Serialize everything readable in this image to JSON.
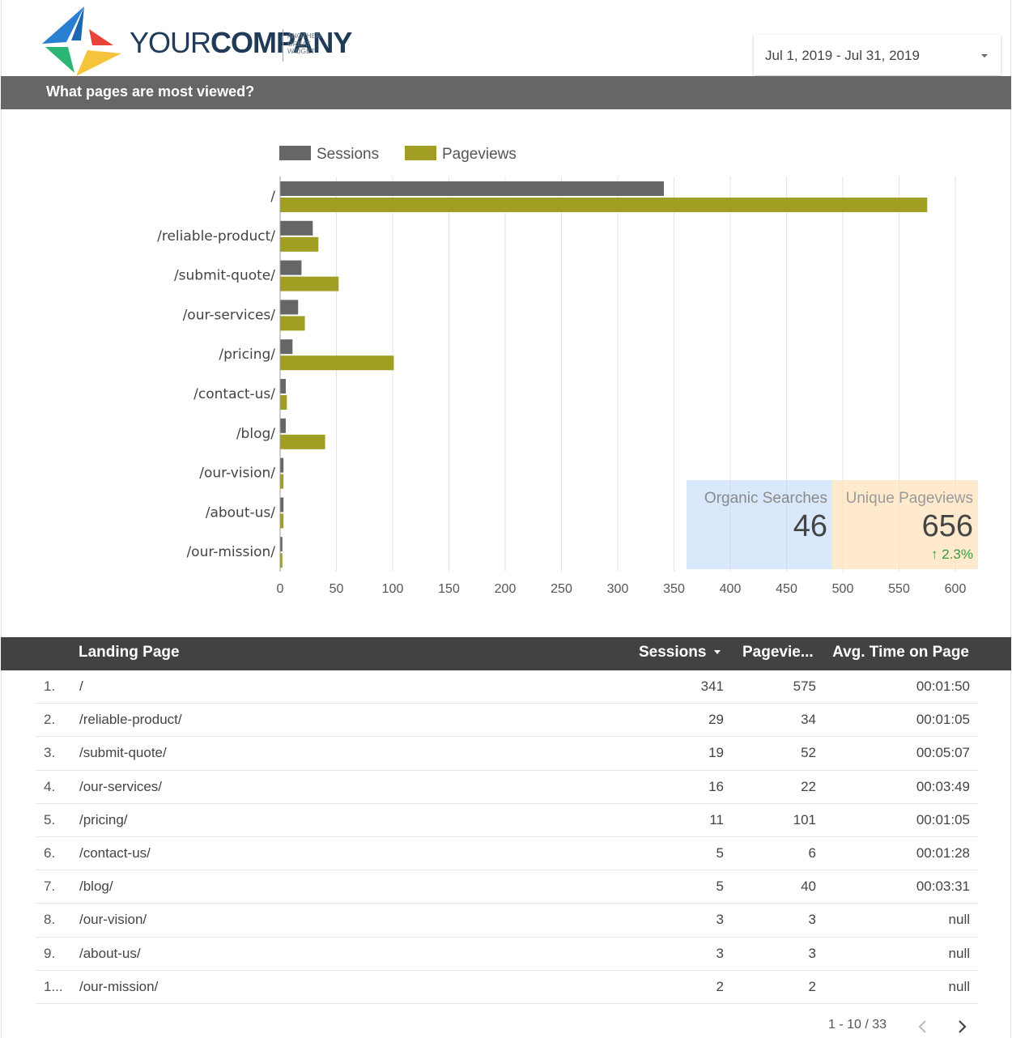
{
  "header": {
    "logo": {
      "word_thin": "YOUR",
      "word_bold": "COMPANY",
      "tagline": [
        "ANOTHER",
        "GREAT",
        "WIDGET"
      ],
      "colors": [
        "#2b7fd0",
        "#e8443a",
        "#2bb673",
        "#f6c43c"
      ]
    },
    "date_range": "Jul 1, 2019 - Jul 31, 2019",
    "date_caret_icon": "caret-down-icon"
  },
  "section": {
    "title": "What pages are most viewed?"
  },
  "chart_data": {
    "type": "bar",
    "orientation": "horizontal",
    "categories": [
      "/",
      "/reliable-product/",
      "/submit-quote/",
      "/our-services/",
      "/pricing/",
      "/contact-us/",
      "/blog/",
      "/our-vision/",
      "/about-us/",
      "/our-mission/"
    ],
    "series": [
      {
        "name": "Sessions",
        "color": "#666666",
        "values": [
          341,
          29,
          19,
          16,
          11,
          5,
          5,
          3,
          3,
          2
        ]
      },
      {
        "name": "Pageviews",
        "color": "#a19e24",
        "values": [
          575,
          34,
          52,
          22,
          101,
          6,
          40,
          3,
          3,
          2
        ]
      }
    ],
    "xlim": [
      0,
      600
    ],
    "xticks": [
      0,
      50,
      100,
      150,
      200,
      250,
      300,
      350,
      400,
      450,
      500,
      550,
      600
    ],
    "grid": true,
    "legend_position": "top"
  },
  "scorecards": {
    "organic": {
      "label": "Organic Searches",
      "value": "46"
    },
    "unique": {
      "label": "Unique Pageviews",
      "value": "656",
      "delta": "2.3%",
      "delta_icon": "arrow-up-icon"
    }
  },
  "table": {
    "columns": {
      "landing": "Landing Page",
      "sessions": "Sessions",
      "pageviews": "Pagevie...",
      "avg": "Avg. Time on Page"
    },
    "sort_icon": "sort-desc-icon",
    "rows": [
      {
        "idx": "1.",
        "page": "/",
        "sessions": "341",
        "pageviews": "575",
        "avg": "00:01:50"
      },
      {
        "idx": "2.",
        "page": "/reliable-product/",
        "sessions": "29",
        "pageviews": "34",
        "avg": "00:01:05"
      },
      {
        "idx": "3.",
        "page": "/submit-quote/",
        "sessions": "19",
        "pageviews": "52",
        "avg": "00:05:07"
      },
      {
        "idx": "4.",
        "page": "/our-services/",
        "sessions": "16",
        "pageviews": "22",
        "avg": "00:03:49"
      },
      {
        "idx": "5.",
        "page": "/pricing/",
        "sessions": "11",
        "pageviews": "101",
        "avg": "00:01:05"
      },
      {
        "idx": "6.",
        "page": "/contact-us/",
        "sessions": "5",
        "pageviews": "6",
        "avg": "00:01:28"
      },
      {
        "idx": "7.",
        "page": "/blog/",
        "sessions": "5",
        "pageviews": "40",
        "avg": "00:03:31"
      },
      {
        "idx": "8.",
        "page": "/our-vision/",
        "sessions": "3",
        "pageviews": "3",
        "avg": "null"
      },
      {
        "idx": "9.",
        "page": "/about-us/",
        "sessions": "3",
        "pageviews": "3",
        "avg": "null"
      },
      {
        "idx": "1...",
        "page": "/our-mission/",
        "sessions": "2",
        "pageviews": "2",
        "avg": "null"
      }
    ]
  },
  "pagination": {
    "range": "1 - 10 / 33",
    "prev_icon": "chevron-left-icon",
    "next_icon": "chevron-right-icon"
  }
}
